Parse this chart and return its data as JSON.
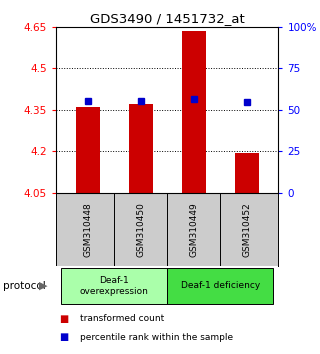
{
  "title": "GDS3490 / 1451732_at",
  "samples": [
    "GSM310448",
    "GSM310450",
    "GSM310449",
    "GSM310452"
  ],
  "bar_values": [
    4.36,
    4.37,
    4.635,
    4.195
  ],
  "blue_values": [
    4.382,
    4.382,
    4.387,
    4.377
  ],
  "bar_base": 4.05,
  "ylim_left": [
    4.05,
    4.65
  ],
  "ylim_right": [
    0,
    100
  ],
  "yticks_left": [
    4.05,
    4.2,
    4.35,
    4.5,
    4.65
  ],
  "ytick_labels_left": [
    "4.05",
    "4.2",
    "4.35",
    "4.5",
    "4.65"
  ],
  "yticks_right": [
    0,
    25,
    50,
    75,
    100
  ],
  "ytick_labels_right": [
    "0",
    "25",
    "50",
    "75",
    "100%"
  ],
  "hlines": [
    4.2,
    4.35,
    4.5
  ],
  "bar_color": "#cc0000",
  "blue_color": "#0000cc",
  "bar_width": 0.45,
  "groups": [
    {
      "label": "Deaf-1\noverexpression",
      "samples": [
        0,
        1
      ],
      "color": "#aaffaa"
    },
    {
      "label": "Deaf-1 deficiency",
      "samples": [
        2,
        3
      ],
      "color": "#44dd44"
    }
  ],
  "protocol_label": "protocol",
  "legend_items": [
    {
      "color": "#cc0000",
      "label": "transformed count"
    },
    {
      "color": "#0000cc",
      "label": "percentile rank within the sample"
    }
  ],
  "bg_color": "#ffffff",
  "plot_bg": "#ffffff",
  "xlabel_area_color": "#cccccc"
}
